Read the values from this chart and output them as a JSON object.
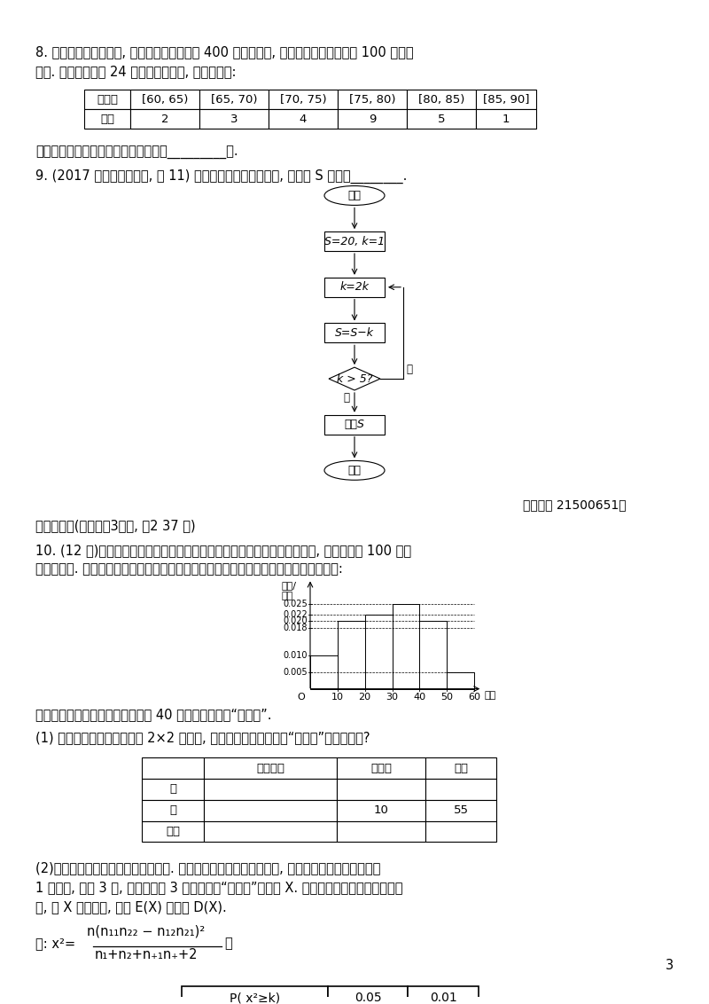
{
  "bg_color": "#ffffff",
  "page_number": "3",
  "q8_text1": "8. 某高校进行自主招生, 先从报名者中筛选出 400 人参加笔试, 再按笔试成绩择优选出 100 人参加",
  "q8_text2": "面试. 现随机调查了 24 名笔试者的成绩, 如下表所示:",
  "table1_headers": [
    "分数段",
    "[60, 65)",
    "[65, 70)",
    "[70, 75)",
    "[75, 80)",
    "[80, 85)",
    "[85, 90]"
  ],
  "table1_row": [
    "人数",
    "2",
    "3",
    "4",
    "9",
    "5",
    "1"
  ],
  "q8_blank": "据此估计允许参加面试的分数线大约是_________分.",
  "q9_text": "9. (2017 北京西城区一模, 理 11) 执行如图所示的程序框图, 输出的 S 的值为________.",
  "guide_number": "『导学号 21500651』",
  "section3_title": "三、解答题(本大题共3小题, 共2 37 分)",
  "q10_text1": "10. (12 分)电视传媒公司为了解某地区电视观众对某类体育节目的收视情况, 随机抽取了 100 名观",
  "q10_text2": "众进行调查. 下面是根据调查结果绘制的观众日均收看该体育节目时间的频率分布直方图:",
  "hist_bars": [
    0.01,
    0.02,
    0.022,
    0.025,
    0.02,
    0.005
  ],
  "q10_note": "将日均收看该体育节目时间不低于 40 分钟的观众称为“体育迷”.",
  "q10_sub1": "(1) 根据已知条件完成下面的 2×2 列联表, 并据此资料你是否认为“体育迷”与性别有关?",
  "table2_headers": [
    "",
    "非体育迷",
    "体育迷",
    "合计"
  ],
  "table2_rows": [
    [
      "男",
      "",
      "",
      ""
    ],
    [
      "女",
      "",
      "10",
      "55"
    ],
    [
      "合计",
      "",
      "",
      ""
    ]
  ],
  "q10_sub2_text1": "(2)将上述调查所得到的频率视为概率. 现在从该地区大量电视观众中, 采用随机抄样方法每次抄取",
  "q10_sub2_text2": "1 名观众, 抄取 3 次, 记被抄取的 3 名观众中的“体育迷”人数为 X. 若每次抄取的结果是相互独立",
  "q10_sub2_text3": "的, 求 X 的分布列, 期望 E(X) 和方差 D(X).",
  "chi_table_headers": [
    "P( x²≥k)",
    "0.05",
    "0.01"
  ]
}
